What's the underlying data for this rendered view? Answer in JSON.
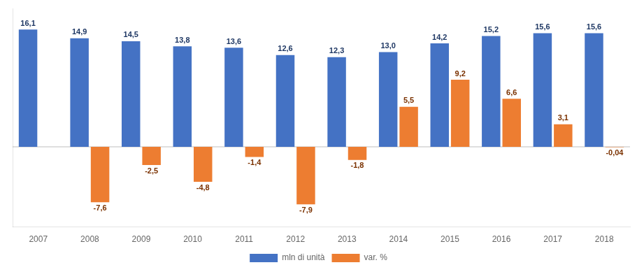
{
  "chart_data": {
    "type": "bar",
    "categories": [
      "2007",
      "2008",
      "2009",
      "2010",
      "2011",
      "2012",
      "2013",
      "2014",
      "2015",
      "2016",
      "2017",
      "2018"
    ],
    "series": [
      {
        "name": "mln di unità",
        "color": "#4472C4",
        "values": [
          16.1,
          14.9,
          14.5,
          13.8,
          13.6,
          12.6,
          12.3,
          13.0,
          14.2,
          15.2,
          15.6,
          15.6
        ],
        "value_labels": [
          "16,1",
          "14,9",
          "14,5",
          "13,8",
          "13,6",
          "12,6",
          "12,3",
          "13,0",
          "14,2",
          "15,2",
          "15,6",
          "15,6"
        ]
      },
      {
        "name": "var. %",
        "color": "#ED7D31",
        "values": [
          null,
          -7.6,
          -2.5,
          -4.8,
          -1.4,
          -7.9,
          -1.8,
          5.5,
          9.2,
          6.6,
          3.1,
          -0.04
        ],
        "value_labels": [
          null,
          "-7,6",
          "-2,5",
          "-4,8",
          "-1,4",
          "-7,9",
          "-1,8",
          "5,5",
          "9,2",
          "6,6",
          "3,1",
          "-0,04"
        ]
      }
    ],
    "ylim": [
      -11,
      19
    ],
    "grid": false,
    "legend": "bottom",
    "data_labels": true,
    "tick_labels": "x"
  }
}
